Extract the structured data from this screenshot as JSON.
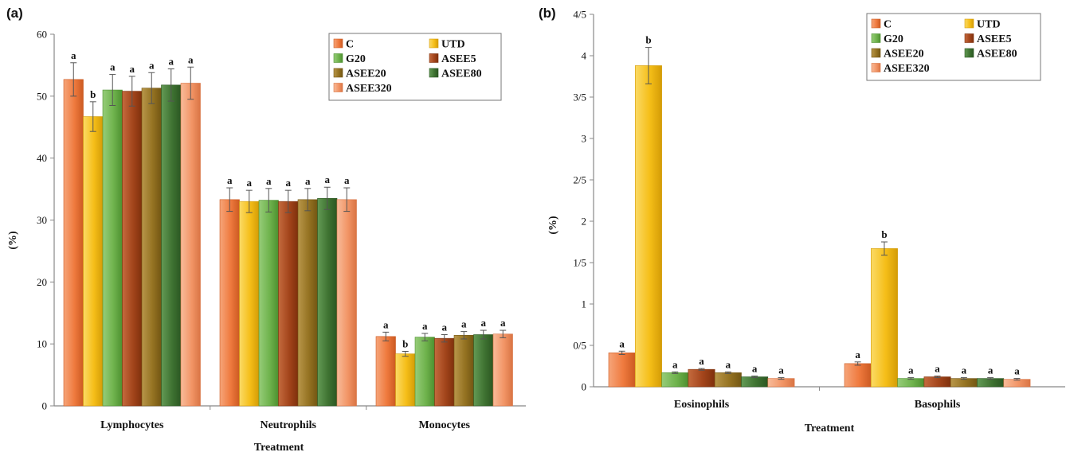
{
  "chart_data": [
    {
      "panel": "(a)",
      "type": "bar",
      "categories": [
        "Lymphocytes",
        "Neutrophils",
        "Monocytes"
      ],
      "xlabel": "Treatment",
      "ylabel": "(%)",
      "ylim": [
        0,
        60
      ],
      "yticks": [
        "0",
        "10",
        "20",
        "30",
        "40",
        "50",
        "60"
      ],
      "grid": false,
      "legend_position": "top-right",
      "series": [
        {
          "name": "C",
          "values": [
            52.7,
            33.3,
            11.2
          ],
          "errors": [
            2.7,
            1.9,
            0.7
          ],
          "letters": [
            "a",
            "a",
            "a"
          ]
        },
        {
          "name": "UTD",
          "values": [
            46.7,
            33.0,
            8.4
          ],
          "errors": [
            2.4,
            1.8,
            0.4
          ],
          "letters": [
            "b",
            "a",
            "b"
          ]
        },
        {
          "name": "G20",
          "values": [
            51.0,
            33.2,
            11.1
          ],
          "errors": [
            2.5,
            1.9,
            0.6
          ],
          "letters": [
            "a",
            "a",
            "a"
          ]
        },
        {
          "name": "ASEE5",
          "values": [
            50.8,
            33.0,
            10.9
          ],
          "errors": [
            2.4,
            1.8,
            0.6
          ],
          "letters": [
            "a",
            "a",
            "a"
          ]
        },
        {
          "name": "ASEE20",
          "values": [
            51.3,
            33.3,
            11.4
          ],
          "errors": [
            2.5,
            1.8,
            0.6
          ],
          "letters": [
            "a",
            "a",
            "a"
          ]
        },
        {
          "name": "ASEE80",
          "values": [
            51.8,
            33.5,
            11.5
          ],
          "errors": [
            2.6,
            1.8,
            0.7
          ],
          "letters": [
            "a",
            "a",
            "a"
          ]
        },
        {
          "name": "ASEE320",
          "values": [
            52.1,
            33.3,
            11.6
          ],
          "errors": [
            2.6,
            1.9,
            0.6
          ],
          "letters": [
            "a",
            "a",
            "a"
          ]
        }
      ]
    },
    {
      "panel": "(b)",
      "type": "bar",
      "categories": [
        "Eosinophils",
        "Basophils"
      ],
      "xlabel": "Treatment",
      "ylabel": "(%)",
      "ylim": [
        0,
        4.5
      ],
      "yticks": [
        "0",
        "0/5",
        "1",
        "1/5",
        "2",
        "2/5",
        "3",
        "3/5",
        "4",
        "4/5"
      ],
      "grid": false,
      "legend_position": "top-right",
      "series": [
        {
          "name": "C",
          "values": [
            0.41,
            0.28
          ],
          "errors": [
            0.02,
            0.02
          ],
          "letters": [
            "a",
            "a"
          ]
        },
        {
          "name": "UTD",
          "values": [
            3.88,
            1.67
          ],
          "errors": [
            0.22,
            0.08
          ],
          "letters": [
            "b",
            "b"
          ]
        },
        {
          "name": "G20",
          "values": [
            0.17,
            0.1
          ],
          "errors": [
            0.01,
            0.01
          ],
          "letters": [
            "a",
            "a"
          ]
        },
        {
          "name": "ASEE5",
          "values": [
            0.21,
            0.12
          ],
          "errors": [
            0.01,
            0.01
          ],
          "letters": [
            "a",
            "a"
          ]
        },
        {
          "name": "ASEE20",
          "values": [
            0.17,
            0.1
          ],
          "errors": [
            0.01,
            0.01
          ],
          "letters": [
            "a",
            "a"
          ]
        },
        {
          "name": "ASEE80",
          "values": [
            0.12,
            0.1
          ],
          "errors": [
            0.01,
            0.01
          ],
          "letters": [
            "a",
            "a"
          ]
        },
        {
          "name": "ASEE320",
          "values": [
            0.1,
            0.09
          ],
          "errors": [
            0.01,
            0.01
          ],
          "letters": [
            "a",
            "a"
          ]
        }
      ]
    }
  ],
  "colors": {
    "C": {
      "fill": "#ef7a3e",
      "light": "#f6a57a",
      "dark": "#cc5a22"
    },
    "UTD": {
      "fill": "#f5be18",
      "light": "#fbda66",
      "dark": "#d49c06"
    },
    "G20": {
      "fill": "#6fb34d",
      "light": "#96cc79",
      "dark": "#4d9030"
    },
    "ASEE5": {
      "fill": "#a3451b",
      "light": "#c46a3e",
      "dark": "#7f300c"
    },
    "ASEE20": {
      "fill": "#957322",
      "light": "#b8964a",
      "dark": "#735613"
    },
    "ASEE80": {
      "fill": "#3f7332",
      "light": "#639a55",
      "dark": "#2b5722"
    },
    "ASEE320": {
      "fill": "#f29566",
      "light": "#f8bb9a",
      "dark": "#d97444"
    }
  }
}
